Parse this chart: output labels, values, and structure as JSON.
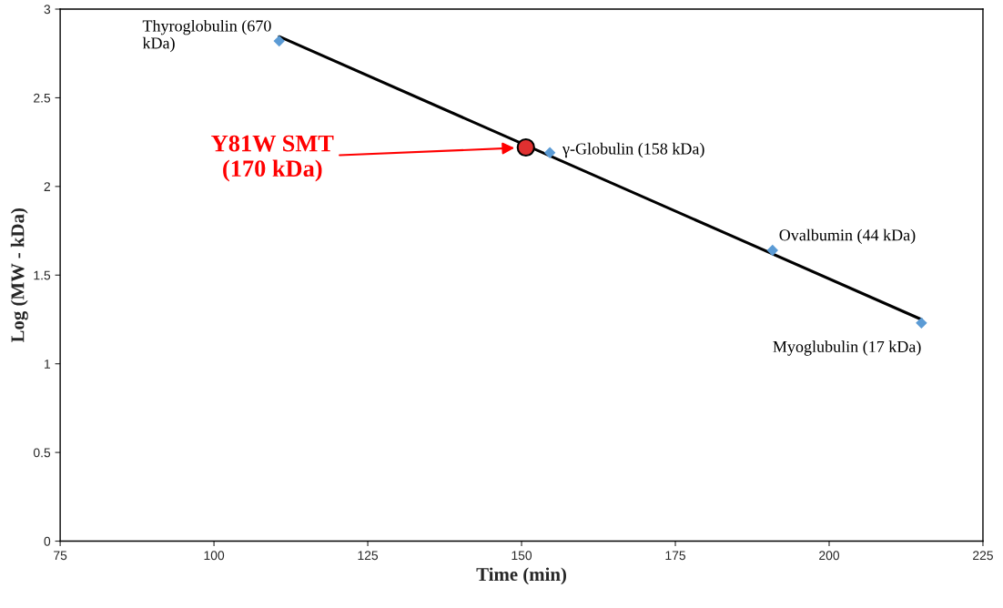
{
  "chart_data": {
    "type": "scatter",
    "xlabel": "Time (min)",
    "ylabel": "Log (MW - kDa)",
    "xlim": [
      75,
      225
    ],
    "xticks": [
      75,
      100,
      125,
      150,
      175,
      200,
      225
    ],
    "ylim": [
      0,
      3
    ],
    "yticks": [
      0,
      0.5,
      1,
      1.5,
      2,
      2.5,
      3
    ],
    "grid": false,
    "legend": false,
    "series": [
      {
        "type": "line",
        "color": "#000000",
        "x": [
          110.6,
          215
        ],
        "values": [
          2.845,
          1.25
        ],
        "marker": "none",
        "line_style": "solid"
      },
      {
        "color": "#5b9bd5",
        "x": [
          110.6,
          154.6,
          190.8,
          215
        ],
        "values": [
          2.82,
          2.19,
          1.64,
          1.23
        ],
        "marker": "diamond"
      },
      {
        "type": "scatter",
        "color": "#e03030",
        "x": [
          150.7
        ],
        "values": [
          2.22
        ],
        "marker": "circle"
      }
    ],
    "annotations": [
      {
        "text": "Thyroglobulin (670\nkDa)",
        "x": 110.6,
        "y": 2.82
      },
      {
        "text": "γ-Globulin (158 kDa)",
        "x": 154.6,
        "y": 2.19
      },
      {
        "text": "Ovalbumin (44 kDa)",
        "x": 190.8,
        "y": 1.64
      },
      {
        "text": "Myoglubulin (17 kDa)",
        "x": 215,
        "y": 1.23
      },
      "Y81W SMT\n(170 kDa)"
    ]
  }
}
